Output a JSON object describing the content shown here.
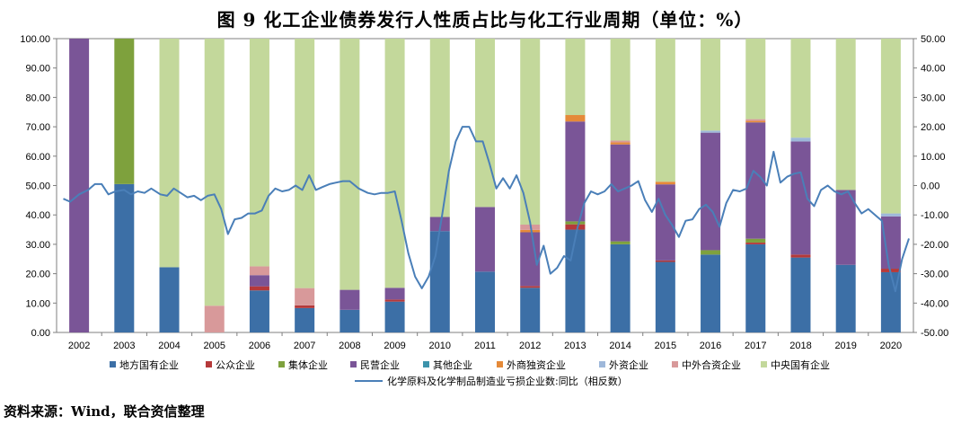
{
  "title": "图 9   化工企业债券发行人性质占比与化工行业周期（单位：%）",
  "source": "资料来源：Wind，联合资信整理",
  "chart_data": {
    "type": "bar+line",
    "stacked": true,
    "categories": [
      "2002",
      "2003",
      "2004",
      "2005",
      "2006",
      "2007",
      "2008",
      "2009",
      "2010",
      "2011",
      "2012",
      "2013",
      "2014",
      "2015",
      "2016",
      "2017",
      "2018",
      "2019",
      "2020"
    ],
    "y_left_ticks": [
      "0.00",
      "10.00",
      "20.00",
      "30.00",
      "40.00",
      "50.00",
      "60.00",
      "70.00",
      "80.00",
      "90.00",
      "100.00"
    ],
    "y_right_ticks": [
      "-50.00",
      "-40.00",
      "-30.00",
      "-20.00",
      "-10.00",
      "0.00",
      "10.00",
      "20.00",
      "30.00",
      "40.00",
      "50.00"
    ],
    "ylim_left": [
      0,
      100
    ],
    "ylim_right": [
      -50,
      50
    ],
    "series": [
      {
        "name": "地方国有企业",
        "color": "#3c6fa6",
        "values": [
          0,
          50.5,
          22.2,
          0,
          14.3,
          8.3,
          7.7,
          10.5,
          34.5,
          20.7,
          15.2,
          35,
          30,
          24,
          26.5,
          30,
          25.5,
          23,
          20.5
        ]
      },
      {
        "name": "公众企业",
        "color": "#b5393a",
        "values": [
          0,
          0,
          0,
          0,
          1.4,
          0.9,
          0,
          0.7,
          0,
          0,
          0.6,
          1.8,
          0,
          0.5,
          0,
          0.6,
          1,
          0,
          1.2
        ]
      },
      {
        "name": "集体企业",
        "color": "#7ea13d",
        "values": [
          0,
          49.5,
          0,
          0,
          0,
          0,
          0,
          0,
          0,
          0,
          0,
          1,
          1,
          0,
          1.5,
          1.3,
          0,
          0,
          0
        ]
      },
      {
        "name": "民营企业",
        "color": "#7a5597",
        "values": [
          100,
          0,
          0,
          0,
          3.8,
          0,
          6.8,
          4,
          4.8,
          22,
          18.3,
          34,
          33,
          25.9,
          40,
          39.6,
          38.5,
          25.5,
          17.8
        ]
      },
      {
        "name": "其他企业",
        "color": "#3c93ab",
        "values": [
          0,
          0,
          0,
          0,
          0,
          0,
          0,
          0,
          0,
          0,
          0,
          0,
          0,
          0,
          0,
          0,
          0,
          0,
          0
        ]
      },
      {
        "name": "外商独资企业",
        "color": "#e58a39",
        "values": [
          0,
          0,
          0,
          0,
          0,
          0,
          0,
          0,
          0,
          0,
          0.8,
          2.2,
          0.7,
          0.9,
          0,
          0.5,
          0,
          0,
          0
        ]
      },
      {
        "name": "外资企业",
        "color": "#9eb8da",
        "values": [
          0,
          0,
          0,
          0,
          0,
          0,
          0,
          0,
          0,
          0,
          0,
          0,
          0,
          0,
          0.7,
          0,
          1.3,
          0,
          1
        ]
      },
      {
        "name": "中外合资企业",
        "color": "#d8999a",
        "values": [
          0,
          0,
          0,
          9.1,
          3,
          5.9,
          0,
          0,
          0,
          0,
          1.8,
          0,
          0.6,
          0,
          0,
          0.6,
          0,
          0,
          0
        ]
      },
      {
        "name": "中央国有企业",
        "color": "#c3d89b",
        "values": [
          0,
          0,
          77.8,
          90.9,
          77.5,
          84.9,
          85.5,
          84.8,
          60.7,
          57.3,
          63.3,
          26,
          34.7,
          48.7,
          31.3,
          27.4,
          33.7,
          51.5,
          59.5
        ]
      }
    ],
    "line": {
      "name": "化学原料及化学制品制造业亏损企业数:同比（相反数）",
      "color": "#4a7fb8",
      "axis": "right",
      "x": [
        2001.65,
        2001.8,
        2002.0,
        2002.2,
        2002.35,
        2002.5,
        2002.65,
        2002.8,
        2003.0,
        2003.15,
        2003.3,
        2003.45,
        2003.6,
        2003.8,
        2003.95,
        2004.1,
        2004.25,
        2004.4,
        2004.55,
        2004.7,
        2004.85,
        2005.0,
        2005.15,
        2005.3,
        2005.45,
        2005.6,
        2005.75,
        2005.9,
        2006.05,
        2006.2,
        2006.35,
        2006.5,
        2006.65,
        2006.8,
        2006.95,
        2007.1,
        2007.25,
        2007.4,
        2007.55,
        2007.7,
        2007.85,
        2008.0,
        2008.2,
        2008.4,
        2008.55,
        2008.7,
        2008.85,
        2009.0,
        2009.15,
        2009.3,
        2009.45,
        2009.6,
        2009.75,
        2009.9,
        2010.05,
        2010.2,
        2010.35,
        2010.5,
        2010.65,
        2010.8,
        2010.95,
        2011.1,
        2011.25,
        2011.4,
        2011.55,
        2011.7,
        2011.85,
        2012.0,
        2012.15,
        2012.3,
        2012.45,
        2012.6,
        2012.75,
        2012.9,
        2013.05,
        2013.2,
        2013.35,
        2013.5,
        2013.65,
        2013.8,
        2013.95,
        2014.1,
        2014.25,
        2014.4,
        2014.55,
        2014.7,
        2014.85,
        2015.0,
        2015.15,
        2015.3,
        2015.45,
        2015.6,
        2015.75,
        2015.9,
        2016.05,
        2016.2,
        2016.35,
        2016.5,
        2016.65,
        2016.8,
        2016.95,
        2017.1,
        2017.25,
        2017.4,
        2017.55,
        2017.7,
        2017.85,
        2018.0,
        2018.15,
        2018.3,
        2018.45,
        2018.6,
        2018.75,
        2018.9,
        2019.05,
        2019.2,
        2019.35,
        2019.5,
        2019.65,
        2019.8,
        2019.95,
        2020.1,
        2020.25,
        2020.4
      ],
      "y": [
        -4.5,
        -5.5,
        -3,
        -1.5,
        0.5,
        0.5,
        -3,
        -2,
        -1.5,
        -3,
        -2,
        -2.5,
        -1,
        -3,
        -3.5,
        -1,
        -2.5,
        -4,
        -3.5,
        -5,
        -3.5,
        -3,
        -8,
        -16.5,
        -11.5,
        -11,
        -9.5,
        -9.5,
        -8.5,
        -3.5,
        -1,
        -2,
        -1.5,
        0,
        -1.5,
        3.5,
        -1.5,
        -0.5,
        0.5,
        1,
        1.5,
        1.5,
        -1,
        -2.5,
        -3,
        -2.5,
        -2.5,
        -2,
        -12,
        -23,
        -31,
        -35,
        -31,
        -24,
        -10,
        5,
        15,
        20,
        20,
        15,
        15,
        7.5,
        -1,
        2.5,
        -1,
        3.5,
        -2.5,
        -12.5,
        -27,
        -20.5,
        -30,
        -28,
        -24,
        -25.5,
        -14.5,
        -6,
        -2,
        -3,
        -2,
        0.5,
        -2,
        -1,
        0,
        1.5,
        -5,
        -9,
        -4.5,
        -10,
        -13.5,
        -17.5,
        -12,
        -11.5,
        -8,
        -6.5,
        -9,
        -14,
        -6,
        -1.5,
        -2,
        -1,
        5,
        3,
        0,
        11.5,
        1,
        3,
        4,
        4.5,
        -4.5,
        -7,
        -1.5,
        0,
        -2,
        -3,
        -2,
        -6,
        -9.5,
        -8,
        -10,
        -12,
        -27,
        -36,
        -25,
        -18
      ]
    },
    "legend": [
      "地方国有企业",
      "公众企业",
      "集体企业",
      "民营企业",
      "其他企业",
      "外商独资企业",
      "外资企业",
      "中外合资企业",
      "中央国有企业",
      "化学原料及化学制品制造业亏损企业数:同比（相反数）"
    ],
    "legend_position": "bottom"
  }
}
